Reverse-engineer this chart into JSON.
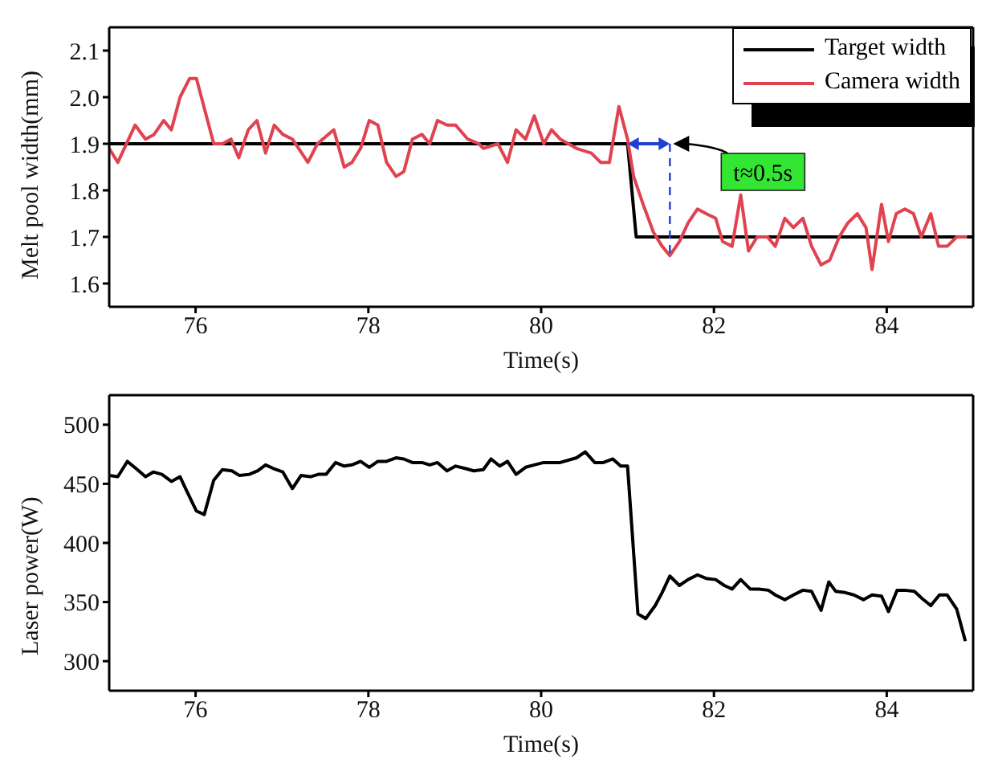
{
  "chart_data": [
    {
      "type": "line",
      "xlabel": "Time(s)",
      "ylabel": "Melt pool width(mm)",
      "xlim": [
        75,
        85
      ],
      "xticks": [
        76,
        78,
        80,
        82,
        84
      ],
      "ylim": [
        1.55,
        2.15
      ],
      "yticks": [
        1.6,
        1.7,
        1.8,
        1.9,
        {
          "value": 2,
          "label": "2.0"
        },
        2.1
      ],
      "legend": "top right",
      "marker": "none",
      "line_style": "solid",
      "series": [
        {
          "name": "Target width",
          "color": "#000000",
          "x": [
            75,
            81,
            81.1,
            85
          ],
          "values": [
            1.9,
            1.9,
            1.7,
            1.7
          ]
        },
        {
          "name": "Camera width",
          "color": "#e0434f",
          "x": [
            75.0,
            75.1,
            75.3,
            75.42,
            75.52,
            75.63,
            75.72,
            75.82,
            75.93,
            76.01,
            76.21,
            76.31,
            76.41,
            76.5,
            76.61,
            76.71,
            76.81,
            76.91,
            77.01,
            77.12,
            77.3,
            77.41,
            77.6,
            77.72,
            77.81,
            77.91,
            78.01,
            78.11,
            78.21,
            78.32,
            78.41,
            78.51,
            78.62,
            78.71,
            78.8,
            78.91,
            79.01,
            79.15,
            79.28,
            79.33,
            79.5,
            79.61,
            79.71,
            79.82,
            79.92,
            80.03,
            80.12,
            80.22,
            80.41,
            80.58,
            80.69,
            80.79,
            80.9,
            81.0,
            81.07,
            81.18,
            81.3,
            81.4,
            81.49,
            81.6,
            81.7,
            81.81,
            81.91,
            82.02,
            82.1,
            82.21,
            82.31,
            82.4,
            82.5,
            82.62,
            82.71,
            82.82,
            82.92,
            83.03,
            83.13,
            83.24,
            83.34,
            83.45,
            83.55,
            83.66,
            83.76,
            83.83,
            83.94,
            84.02,
            84.11,
            84.21,
            84.31,
            84.4,
            84.51,
            84.6,
            84.7,
            84.81,
            84.93
          ],
          "values": [
            1.89,
            1.86,
            1.94,
            1.91,
            1.92,
            1.95,
            1.93,
            2.0,
            2.04,
            2.04,
            1.9,
            1.9,
            1.91,
            1.87,
            1.93,
            1.95,
            1.88,
            1.94,
            1.92,
            1.91,
            1.86,
            1.9,
            1.93,
            1.85,
            1.86,
            1.89,
            1.95,
            1.94,
            1.86,
            1.83,
            1.84,
            1.91,
            1.92,
            1.9,
            1.95,
            1.94,
            1.94,
            1.91,
            1.9,
            1.89,
            1.9,
            1.86,
            1.93,
            1.91,
            1.96,
            1.9,
            1.93,
            1.91,
            1.89,
            1.88,
            1.86,
            1.86,
            1.98,
            1.91,
            1.83,
            1.77,
            1.71,
            1.68,
            1.66,
            1.69,
            1.73,
            1.76,
            1.75,
            1.74,
            1.69,
            1.68,
            1.79,
            1.67,
            1.7,
            1.7,
            1.68,
            1.74,
            1.72,
            1.74,
            1.68,
            1.64,
            1.65,
            1.7,
            1.73,
            1.75,
            1.72,
            1.63,
            1.77,
            1.69,
            1.75,
            1.76,
            1.75,
            1.7,
            1.75,
            1.68,
            1.68,
            1.7,
            1.7
          ]
        }
      ],
      "annotations": [
        "t≈0.5s"
      ]
    },
    {
      "type": "line",
      "xlabel": "Time(s)",
      "ylabel": "Laser power(W)",
      "xlim": [
        75,
        85
      ],
      "xticks": [
        76,
        78,
        80,
        82,
        84
      ],
      "ylim": [
        275,
        525
      ],
      "yticks": [
        300,
        350,
        400,
        450,
        500
      ],
      "marker": "none",
      "line_style": "solid",
      "series": [
        {
          "color": "#000000",
          "x": [
            75.0,
            75.1,
            75.21,
            75.31,
            75.42,
            75.51,
            75.61,
            75.72,
            75.82,
            75.91,
            76.01,
            76.1,
            76.21,
            76.31,
            76.42,
            76.51,
            76.62,
            76.72,
            76.81,
            76.9,
            77.01,
            77.12,
            77.22,
            77.33,
            77.42,
            77.51,
            77.62,
            77.72,
            77.81,
            77.91,
            78.01,
            78.11,
            78.21,
            78.32,
            78.41,
            78.51,
            78.62,
            78.71,
            78.8,
            78.91,
            79.01,
            79.12,
            79.22,
            79.33,
            79.42,
            79.52,
            79.61,
            79.71,
            79.82,
            79.92,
            80.03,
            80.12,
            80.22,
            80.41,
            80.51,
            80.62,
            80.72,
            80.83,
            80.92,
            81.0,
            81.12,
            81.21,
            81.32,
            81.4,
            81.49,
            81.6,
            81.7,
            81.81,
            81.91,
            82.02,
            82.12,
            82.21,
            82.31,
            82.42,
            82.52,
            82.63,
            82.71,
            82.82,
            82.92,
            83.03,
            83.13,
            83.24,
            83.33,
            83.41,
            83.52,
            83.62,
            83.73,
            83.83,
            83.94,
            84.02,
            84.12,
            84.21,
            84.32,
            84.41,
            84.51,
            84.61,
            84.7,
            84.81,
            84.91
          ],
          "values": [
            457,
            456,
            469,
            463,
            456,
            460,
            458,
            452,
            456,
            442,
            427,
            424,
            453,
            462,
            461,
            457,
            458,
            461,
            466,
            463,
            460,
            446,
            457,
            456,
            458,
            458,
            468,
            465,
            466,
            469,
            464,
            469,
            469,
            472,
            471,
            468,
            468,
            466,
            468,
            461,
            465,
            463,
            461,
            462,
            471,
            465,
            469,
            458,
            464,
            466,
            468,
            468,
            468,
            472,
            477,
            468,
            468,
            471,
            465,
            465,
            340,
            336,
            347,
            358,
            372,
            364,
            369,
            373,
            370,
            369,
            364,
            361,
            369,
            361,
            361,
            360,
            356,
            352,
            356,
            360,
            359,
            343,
            367,
            359,
            358,
            356,
            352,
            356,
            355,
            342,
            360,
            360,
            359,
            353,
            347,
            356,
            356,
            344,
            317
          ]
        }
      ]
    }
  ]
}
